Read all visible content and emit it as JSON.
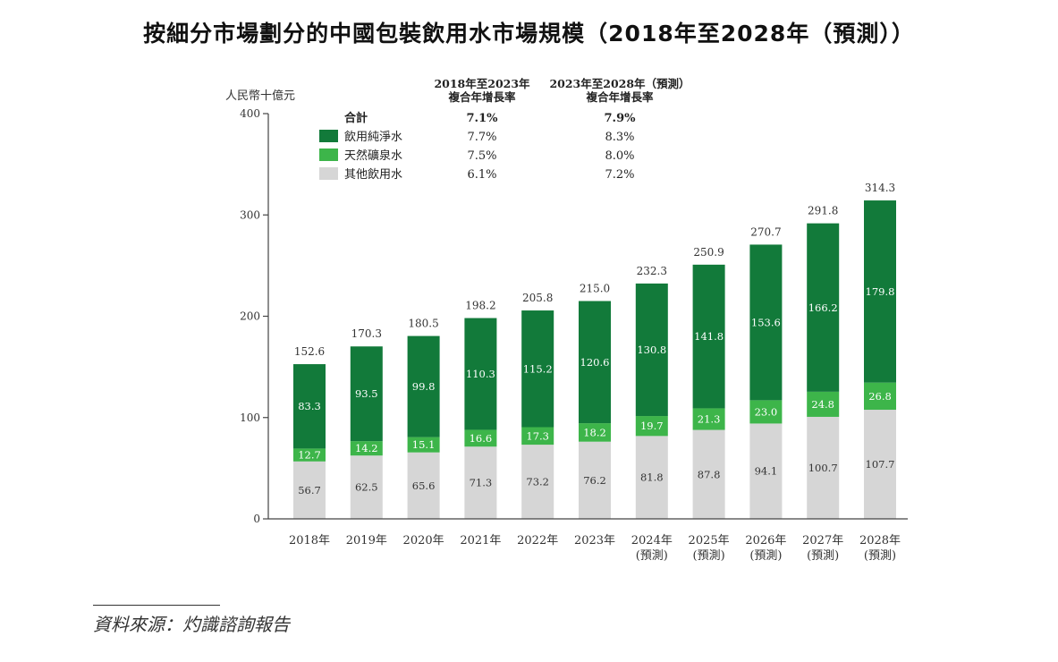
{
  "title": "按細分市場劃分的中國包裝飲用水市場規模（2018年至2028年（預測））",
  "source": "資料來源：灼識諮詢報告",
  "colors": {
    "purified": "#127A3A",
    "mineral": "#3DB54A",
    "other": "#D6D6D6",
    "axis": "#444444"
  },
  "chart_data": {
    "type": "bar",
    "stacked": true,
    "ylabel": "人民幣十億元",
    "ylim": [
      0,
      400
    ],
    "yticks": [
      0,
      100,
      200,
      300,
      400
    ],
    "categories": [
      [
        "2018年"
      ],
      [
        "2019年"
      ],
      [
        "2020年"
      ],
      [
        "2021年"
      ],
      [
        "2022年"
      ],
      [
        "2023年"
      ],
      [
        "2024年",
        "(預測)"
      ],
      [
        "2025年",
        "(預測)"
      ],
      [
        "2026年",
        "(預測)"
      ],
      [
        "2027年",
        "(預測)"
      ],
      [
        "2028年",
        "(預測)"
      ]
    ],
    "series": [
      {
        "name": "其他飲用水",
        "key": "other",
        "values": [
          56.7,
          62.5,
          65.6,
          71.3,
          73.2,
          76.2,
          81.8,
          87.8,
          94.1,
          100.7,
          107.7
        ]
      },
      {
        "name": "天然礦泉水",
        "key": "mineral",
        "values": [
          12.7,
          14.2,
          15.1,
          16.6,
          17.3,
          18.2,
          19.7,
          21.3,
          23.0,
          24.8,
          26.8
        ]
      },
      {
        "name": "飲用純淨水",
        "key": "purified",
        "values": [
          83.3,
          93.5,
          99.8,
          110.3,
          115.2,
          120.6,
          130.8,
          141.8,
          153.6,
          166.2,
          179.8
        ]
      }
    ],
    "totals": [
      "152.6",
      "170.3",
      "180.5",
      "198.2",
      "205.8",
      "215.0",
      "232.3",
      "250.9",
      "270.7",
      "291.8",
      "314.3"
    ],
    "growth_table": {
      "headers": [
        [
          "2018年至2023年",
          "複合年增長率"
        ],
        [
          "2023年至2028年（預測）",
          "複合年增長率"
        ]
      ],
      "rows": [
        {
          "label": "合計",
          "key": "total",
          "bold": true,
          "values": [
            "7.1%",
            "7.9%"
          ]
        },
        {
          "label": "飲用純淨水",
          "key": "purified",
          "values": [
            "7.7%",
            "8.3%"
          ]
        },
        {
          "label": "天然礦泉水",
          "key": "mineral",
          "values": [
            "7.5%",
            "8.0%"
          ]
        },
        {
          "label": "其他飲用水",
          "key": "other",
          "values": [
            "6.1%",
            "7.2%"
          ]
        }
      ]
    }
  }
}
